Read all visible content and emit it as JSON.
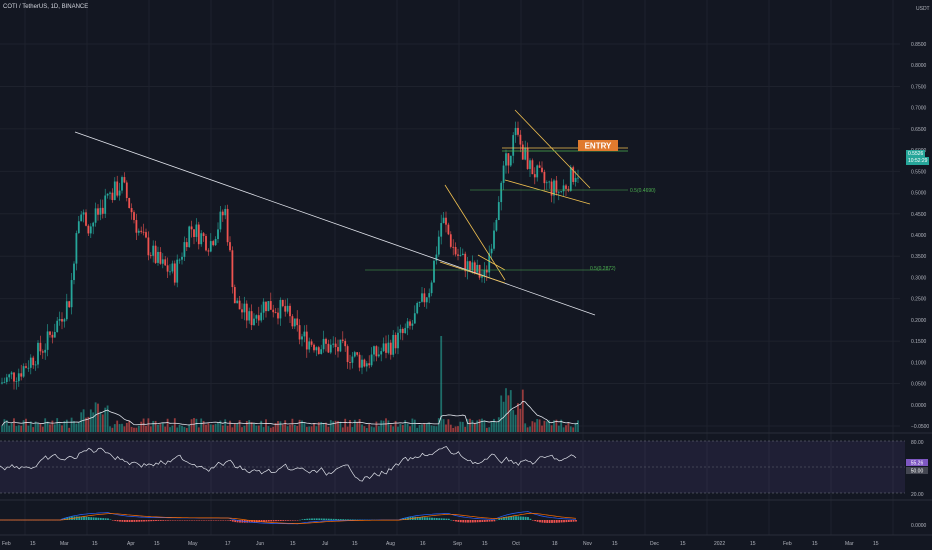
{
  "header": {
    "symbol": "COTI / TetherUS, 1D, BINANCE",
    "quote": "USDT"
  },
  "price_axis": {
    "labels": [
      "0.8500",
      "0.7500",
      "0.6500",
      "0.5500",
      "0.4500",
      "0.3500",
      "0.2500",
      "0.1500",
      "0.0500",
      "−0.0500"
    ],
    "right_labels": [
      "0.8000",
      "0.7000",
      "0.6000",
      "0.5000",
      "0.4000",
      "0.3000",
      "0.2000",
      "0.1000",
      "0.0000"
    ],
    "current_price": "0.5526",
    "countdown": "10:52:29"
  },
  "rsi_axis": {
    "labels": [
      "80.00",
      "20.00"
    ],
    "badge_a": "55.26",
    "badge_b": "50.00"
  },
  "macd_axis": {
    "labels": [
      "0.0000"
    ]
  },
  "time_axis": [
    "Feb",
    "15",
    "Mar",
    "15",
    "Apr",
    "15",
    "May",
    "17",
    "Jun",
    "15",
    "Jul",
    "15",
    "Aug",
    "16",
    "Sep",
    "15",
    "Oct",
    "18",
    "Nov",
    "15",
    "Dec",
    "15",
    "2022",
    "15",
    "Feb",
    "15",
    "Mar",
    "15"
  ],
  "annotations": {
    "entry": "ENTRY",
    "fib_upper": "0.5(0.4690)",
    "fib_lower": "0.5(0.2872)"
  },
  "colors": {
    "up": "#26a69a",
    "down": "#ef5350",
    "bg": "#131722",
    "grid": "#1e222d",
    "entry": "#e07a2e",
    "rsi": "#e0e3eb",
    "line": "#e0e3eb",
    "fib": "#4caf50",
    "wedge": "#f0c050"
  },
  "chart_data": {
    "type": "candlestick",
    "symbol": "COTI/USDT",
    "interval": "1D",
    "price_ylim": [
      -0.05,
      0.85
    ],
    "close_series_approx": {
      "x": [
        "Feb",
        "Mar",
        "Mar 15",
        "Apr",
        "Apr 15",
        "May",
        "May 17",
        "Jun",
        "Jun 15",
        "Jul",
        "Jul 15",
        "Aug",
        "Aug 16",
        "Sep",
        "Sep 15",
        "Oct",
        "Oct 18",
        "Nov"
      ],
      "values": [
        0.05,
        0.14,
        0.44,
        0.48,
        0.38,
        0.33,
        0.42,
        0.26,
        0.22,
        0.16,
        0.13,
        0.14,
        0.27,
        0.31,
        0.33,
        0.62,
        0.5,
        0.55
      ]
    },
    "volume_pane": true,
    "rsi_levels": [
      80,
      20
    ],
    "macd_pane": true
  }
}
